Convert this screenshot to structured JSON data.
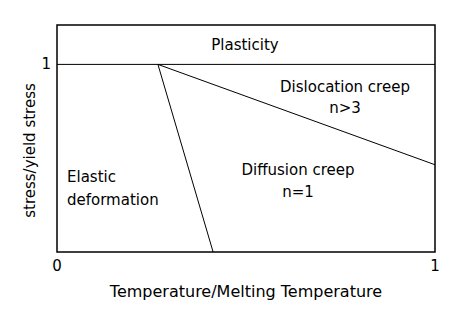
{
  "chart_data": {
    "type": "region_map",
    "x_label": "Temperature/Melting Temperature",
    "y_label": "stress/yield stress",
    "xlim": [
      0,
      1
    ],
    "ylim": [
      0,
      1.21
    ],
    "xticks": [
      0,
      1
    ],
    "yticks": [
      1
    ],
    "grid": false,
    "boundaries": [
      {
        "x": [
          0,
          1
        ],
        "y": [
          1,
          1
        ]
      },
      {
        "x": [
          0.267,
          0.413
        ],
        "y": [
          1,
          0
        ]
      },
      {
        "x": [
          0.267,
          1
        ],
        "y": [
          1,
          0.465
        ]
      }
    ],
    "regions": [
      {
        "text": [
          "Plasticity"
        ]
      },
      {
        "text": [
          "Dislocation creep",
          "n>3"
        ]
      },
      {
        "text": [
          "Diffusion creep",
          "n=1"
        ]
      },
      {
        "text": [
          "Elastic",
          "deformation"
        ]
      }
    ]
  }
}
